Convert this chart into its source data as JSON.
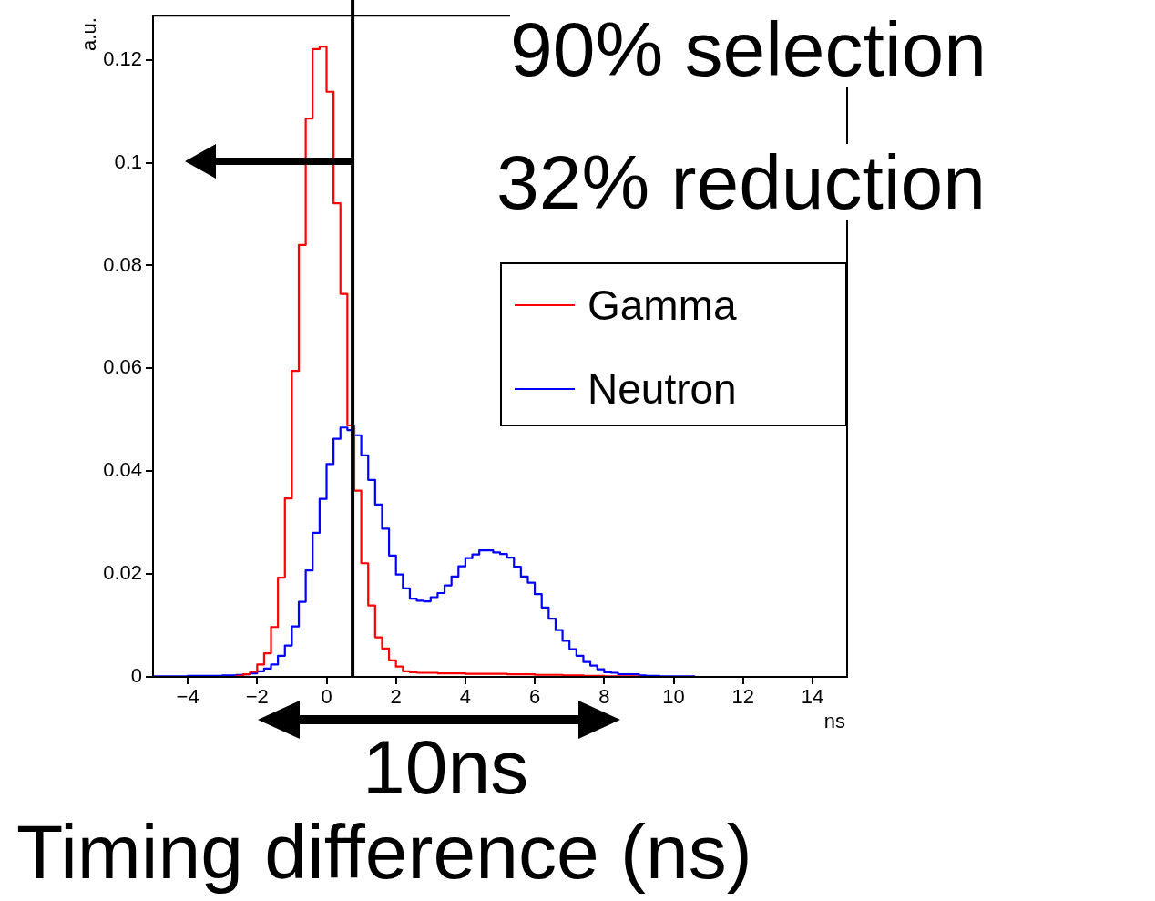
{
  "chart_data": {
    "type": "histogram",
    "xlabel": "ns",
    "ylabel": "a.u.",
    "bins": [
      -5,
      -4.8,
      -4.6,
      -4.4,
      -4.2,
      -4,
      -3.8,
      -3.6,
      -3.4,
      -3.2,
      -3,
      -2.8,
      -2.6,
      -2.4,
      -2.2,
      -2,
      -1.8,
      -1.6,
      -1.4,
      -1.2,
      -1,
      -0.8,
      -0.6,
      -0.4,
      -0.2,
      0,
      0.2,
      0.4,
      0.6,
      0.8,
      1,
      1.2,
      1.4,
      1.6,
      1.8,
      2,
      2.2,
      2.4,
      2.6,
      2.8,
      3,
      3.2,
      3.4,
      3.6,
      3.8,
      4,
      4.2,
      4.4,
      4.6,
      4.8,
      5,
      5.2,
      5.4,
      5.6,
      5.8,
      6,
      6.2,
      6.4,
      6.6,
      6.8,
      7,
      7.2,
      7.4,
      7.6,
      7.8,
      8,
      8.2,
      8.4,
      8.6,
      8.8,
      9,
      9.2,
      9.4,
      9.6,
      9.8,
      10,
      10.2,
      10.4,
      10.6,
      10.8,
      11,
      11.2,
      11.4,
      11.6,
      11.8,
      12,
      12.2,
      12.4,
      12.6,
      12.8,
      13,
      13.2,
      13.4,
      13.6,
      13.8,
      14,
      14.2,
      14.4,
      14.6,
      14.8,
      15
    ],
    "series": [
      {
        "name": "Gamma",
        "color": "#ff0000",
        "values": [
          0,
          0,
          0,
          0,
          0,
          0,
          0,
          0,
          0,
          0,
          0,
          0,
          0.0002,
          0.0005,
          0.001,
          0.0024,
          0.0046,
          0.0097,
          0.0193,
          0.0347,
          0.0595,
          0.084,
          0.1086,
          0.1221,
          0.1226,
          0.1138,
          0.0921,
          0.0745,
          0.0489,
          0.0362,
          0.0221,
          0.0139,
          0.0077,
          0.0055,
          0.0032,
          0.002,
          0.0011,
          0.0009,
          0.0008,
          0.0008,
          0.0008,
          0.0007,
          0.0007,
          0.0007,
          0.0007,
          0.0006,
          0.0006,
          0.0006,
          0.0006,
          0.0006,
          0.0006,
          0.0005,
          0.0005,
          0.0005,
          0.0005,
          0.0004,
          0.0004,
          0.0004,
          0.0004,
          0.0003,
          0.0003,
          0.0003,
          0.0002,
          0.0002,
          0.0002,
          0.0001,
          0.0001,
          0.0001,
          0.0001,
          0.0001,
          0,
          0,
          0,
          0,
          0,
          0,
          0,
          0,
          0,
          0,
          0,
          0,
          0,
          0,
          0,
          0,
          0,
          0,
          0,
          0,
          0,
          0,
          0,
          0,
          0,
          0,
          0,
          0,
          0,
          0
        ]
      },
      {
        "name": "Neutron",
        "color": "#0000ff",
        "values": [
          0.0001,
          0.0001,
          0.0001,
          0.0001,
          0.0001,
          0.0002,
          0.0002,
          0.0002,
          0.0002,
          0.0002,
          0.0003,
          0.0003,
          0.0004,
          0.0005,
          0.0007,
          0.0011,
          0.0016,
          0.0024,
          0.0041,
          0.0061,
          0.0098,
          0.0146,
          0.0207,
          0.028,
          0.0346,
          0.0414,
          0.0463,
          0.0485,
          0.048,
          0.047,
          0.0431,
          0.0383,
          0.0335,
          0.0288,
          0.0236,
          0.0199,
          0.0172,
          0.0152,
          0.0148,
          0.0147,
          0.0155,
          0.0163,
          0.0178,
          0.0195,
          0.0215,
          0.0231,
          0.0238,
          0.0246,
          0.0246,
          0.0242,
          0.0239,
          0.0232,
          0.0214,
          0.0195,
          0.0183,
          0.0161,
          0.0135,
          0.0113,
          0.0091,
          0.007,
          0.0054,
          0.0041,
          0.0029,
          0.0022,
          0.0015,
          0.0009,
          0.0008,
          0.0005,
          0.0005,
          0.0005,
          0.0003,
          0.0002,
          0.0002,
          0.0001,
          0.0001,
          0.0001,
          0.0001,
          0.0001,
          0,
          0,
          0,
          0,
          0,
          0,
          0,
          0,
          0,
          0,
          0,
          0,
          0,
          0,
          0,
          0,
          0,
          0,
          0,
          0,
          0,
          0
        ]
      }
    ],
    "xlim": [
      -5,
      15
    ],
    "xticks": [
      -4,
      -2,
      0,
      2,
      4,
      6,
      8,
      10,
      12,
      14
    ],
    "ylim": [
      0,
      0.1286
    ],
    "yticks": [
      0,
      0.02,
      0.04,
      0.06,
      0.08,
      0.1,
      0.12
    ],
    "ref_lines": [
      {
        "axis": "x",
        "value": 0.75,
        "color": "#000000"
      }
    ],
    "annotations": [
      "90% selection",
      "32% reduction",
      "10ns",
      "Timing difference (ns)"
    ],
    "legend": "right",
    "grid": false
  }
}
